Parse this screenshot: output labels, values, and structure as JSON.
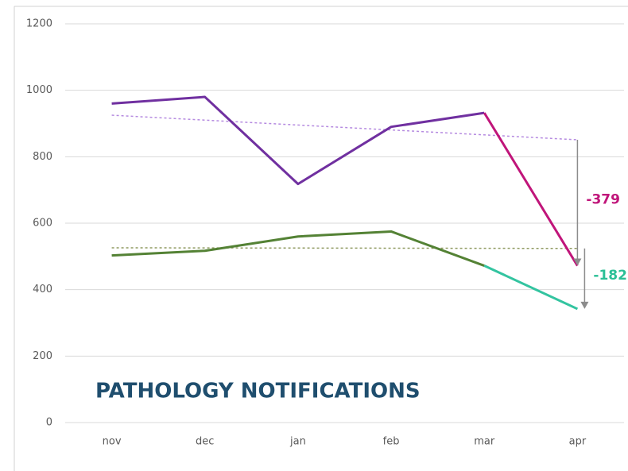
{
  "chart_data": {
    "type": "line",
    "title": "PATHOLOGY NOTIFICATIONS",
    "categories": [
      "nov",
      "dec",
      "jan",
      "feb",
      "mar",
      "apr"
    ],
    "ylim": [
      0,
      1200
    ],
    "yticks": [
      0,
      200,
      400,
      600,
      800,
      1000,
      1200
    ],
    "grid": true,
    "series": [
      {
        "color": "#7030a0",
        "highlight_color": "#c0157a",
        "trend_color": "#b58ae0",
        "values": [
          960,
          980,
          718,
          890,
          932,
          472
        ],
        "trend": [
          925,
          851
        ]
      },
      {
        "color": "#548235",
        "highlight_color": "#33c4a0",
        "trend_color": "#8f9a60",
        "values": [
          503,
          517,
          560,
          575,
          472,
          342
        ],
        "trend": [
          526,
          524
        ]
      }
    ],
    "annotations": [
      {
        "text": "-379",
        "series": 0,
        "color": "#c0157a"
      },
      {
        "text": "-182",
        "series": 1,
        "color": "#2bbf96"
      }
    ]
  }
}
